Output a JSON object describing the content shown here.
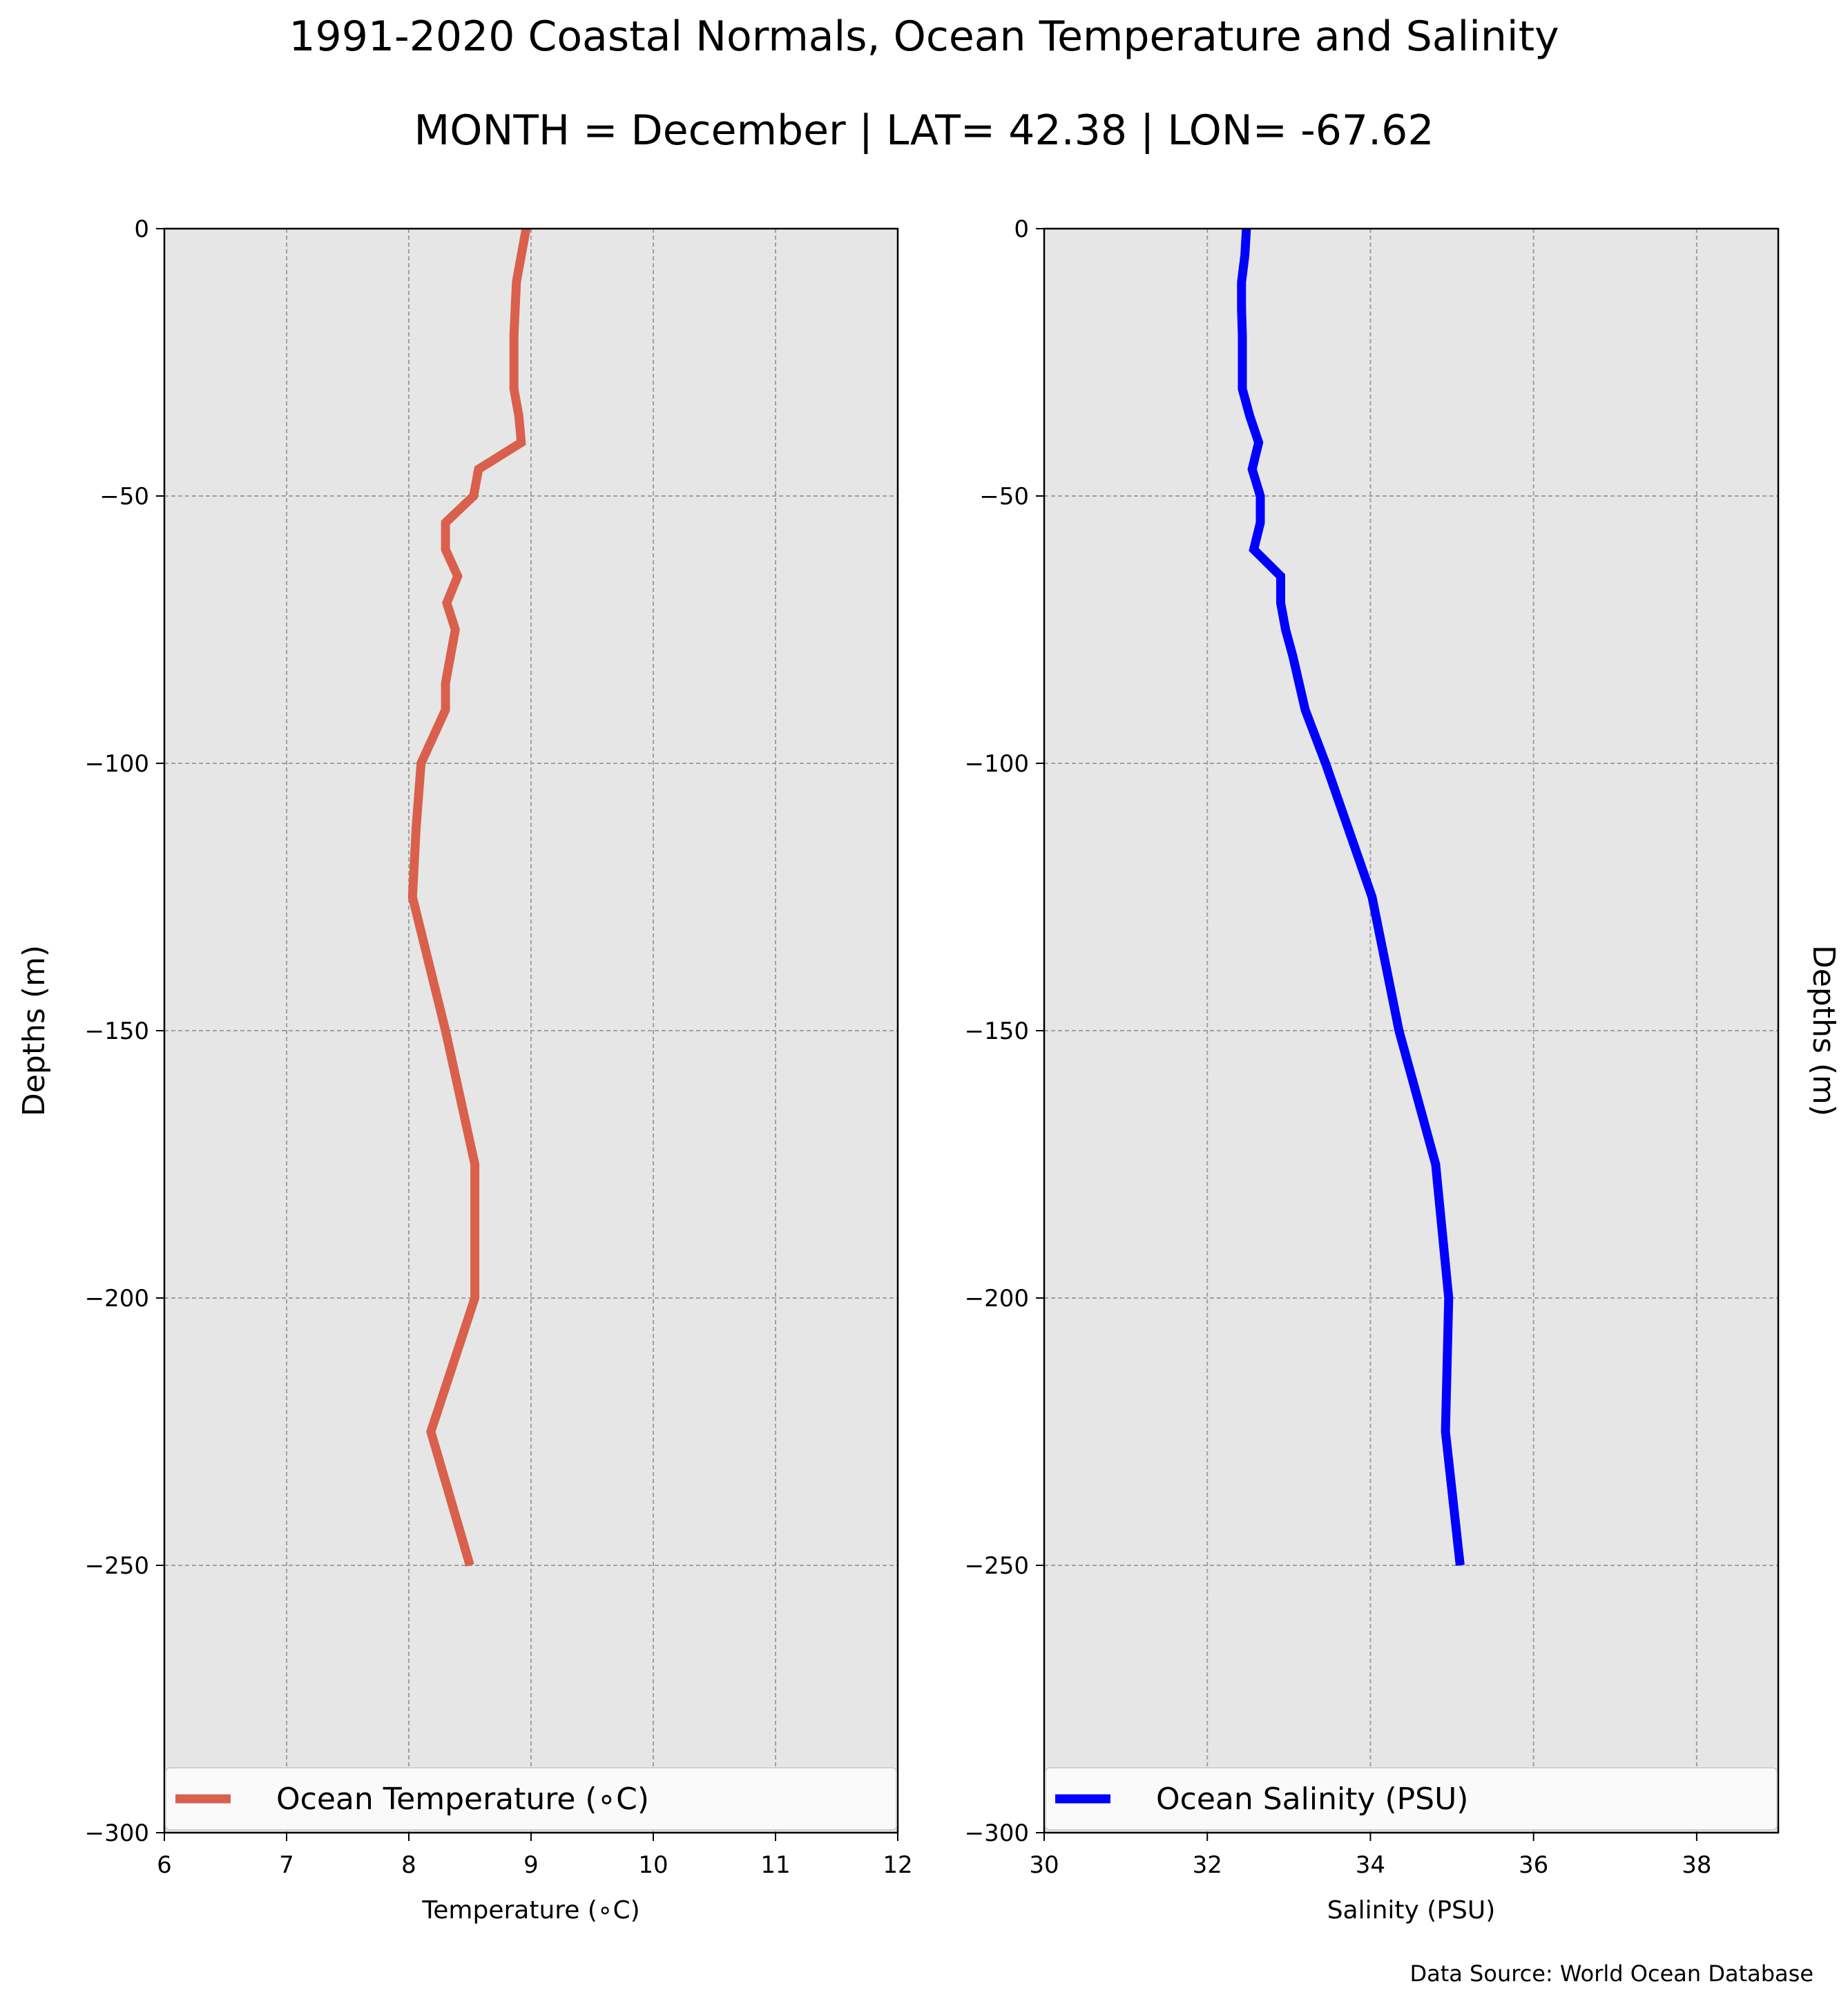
{
  "figure": {
    "title": "1991-2020 Coastal Normals, Ocean Temperature and Salinity",
    "subtitle": "MONTH = December | LAT= 42.38 | LON= -67.62",
    "source": "Data Source: World Ocean Database",
    "background": "#ffffff",
    "plot_background": "#e6e6e6"
  },
  "chart_data": [
    {
      "type": "line",
      "xlabel": "Temperature (∘C)",
      "ylabel": "Depths (m)",
      "xlim": [
        6,
        12
      ],
      "ylim": [
        -300,
        0
      ],
      "xticks": [
        "6",
        "7",
        "8",
        "9",
        "10",
        "11",
        "12"
      ],
      "yticks": [
        "0",
        "−50",
        "−100",
        "−150",
        "−200",
        "−250",
        "−300"
      ],
      "grid": true,
      "legend_position": "bottom",
      "series": [
        {
          "name": "Ocean Temperature (∘C)",
          "color": "#d9604c",
          "x": [
            8.96,
            8.92,
            8.88,
            8.87,
            8.86,
            8.86,
            8.86,
            8.9,
            8.92,
            8.57,
            8.53,
            8.3,
            8.3,
            8.4,
            8.31,
            8.38,
            8.34,
            8.3,
            8.3,
            8.1,
            8.06,
            8.03,
            8.3,
            8.54,
            8.54,
            8.18,
            8.5
          ],
          "y": [
            0,
            -5,
            -10,
            -15,
            -20,
            -25,
            -30,
            -35,
            -40,
            -45,
            -50,
            -55,
            -60,
            -65,
            -70,
            -75,
            -80,
            -85,
            -90,
            -100,
            -112,
            -125,
            -150,
            -175,
            -200,
            -225,
            -250
          ]
        }
      ]
    },
    {
      "type": "line",
      "xlabel": "Salinity (PSU)",
      "ylabel": "Depths (m)",
      "xlim": [
        30,
        39
      ],
      "ylim": [
        -300,
        0
      ],
      "xticks": [
        "30",
        "32",
        "34",
        "36",
        "38"
      ],
      "yticks": [
        "0",
        "−50",
        "−100",
        "−150",
        "−200",
        "−250",
        "−300"
      ],
      "grid": true,
      "legend_position": "bottom",
      "series": [
        {
          "name": "Ocean Salinity (PSU)",
          "color": "#0000ff",
          "x": [
            32.48,
            32.46,
            32.42,
            32.42,
            32.43,
            32.43,
            32.43,
            32.52,
            32.63,
            32.55,
            32.65,
            32.65,
            32.57,
            32.9,
            32.9,
            32.96,
            33.05,
            33.2,
            33.45,
            34.02,
            34.35,
            34.8,
            34.96,
            34.92,
            35.1
          ],
          "y": [
            0,
            -5,
            -10,
            -15,
            -20,
            -25,
            -30,
            -35,
            -40,
            -45,
            -50,
            -55,
            -60,
            -65,
            -70,
            -75,
            -80,
            -90,
            -100,
            -125,
            -150,
            -175,
            -200,
            -225,
            -250
          ]
        }
      ]
    }
  ]
}
